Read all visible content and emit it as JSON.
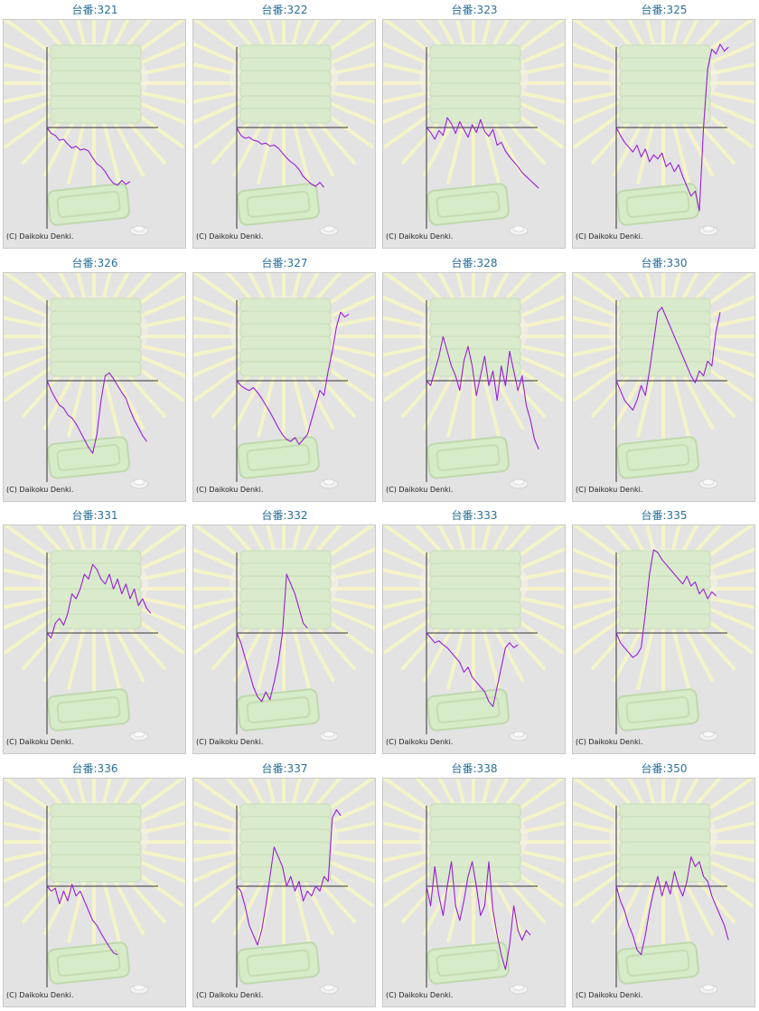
{
  "page": {
    "copyright": "(C) Daikoku Denki.",
    "line_color": "#9a1ed6",
    "label_color": "#2a6f9a"
  },
  "chart_data": [
    {
      "type": "line",
      "title": "台番:321",
      "y": [
        0,
        -6,
        -8,
        -13,
        -12,
        -17,
        -21,
        -19,
        -23,
        -22,
        -24,
        -31,
        -37,
        -40,
        -45,
        -52,
        -57,
        -59,
        -54,
        -58,
        -55
      ]
    },
    {
      "type": "line",
      "title": "台番:322",
      "y": [
        0,
        -8,
        -11,
        -10,
        -13,
        -14,
        -17,
        -16,
        -19,
        -18,
        -21,
        -26,
        -31,
        -35,
        -38,
        -43,
        -50,
        -54,
        -58,
        -60,
        -56,
        -61
      ]
    },
    {
      "type": "line",
      "title": "台番:323",
      "y": [
        0,
        -5,
        -12,
        -3,
        -8,
        10,
        4,
        -6,
        6,
        -2,
        -10,
        3,
        -5,
        8,
        -4,
        -9,
        -2,
        -18,
        -15,
        -24,
        -30,
        -35,
        -40,
        -46,
        -50,
        -54,
        -58,
        -62
      ]
    },
    {
      "type": "line",
      "title": "台番:325",
      "y": [
        0,
        -8,
        -15,
        -20,
        -25,
        -18,
        -30,
        -22,
        -35,
        -28,
        -32,
        -26,
        -40,
        -36,
        -45,
        -38,
        -50,
        -60,
        -70,
        -65,
        -85,
        0,
        60,
        80,
        75,
        85,
        78,
        82
      ]
    },
    {
      "type": "line",
      "title": "台番:326",
      "y": [
        0,
        -10,
        -18,
        -25,
        -28,
        -35,
        -38,
        -44,
        -52,
        -60,
        -68,
        -74,
        -55,
        -20,
        5,
        8,
        2,
        -5,
        -12,
        -18,
        -30,
        -40,
        -48,
        -56,
        -62
      ]
    },
    {
      "type": "line",
      "title": "台番:327",
      "y": [
        0,
        -5,
        -8,
        -10,
        -7,
        -12,
        -18,
        -25,
        -32,
        -40,
        -48,
        -55,
        -60,
        -62,
        -58,
        -65,
        -60,
        -55,
        -40,
        -25,
        -10,
        -15,
        10,
        30,
        55,
        70,
        65,
        68
      ]
    },
    {
      "type": "line",
      "title": "台番:328",
      "y": [
        0,
        -5,
        10,
        25,
        45,
        30,
        15,
        5,
        -10,
        20,
        35,
        15,
        -15,
        5,
        25,
        -5,
        10,
        -20,
        15,
        -5,
        30,
        10,
        -10,
        5,
        -25,
        -40,
        -60,
        -70
      ]
    },
    {
      "type": "line",
      "title": "台番:330",
      "y": [
        0,
        -10,
        -20,
        -25,
        -30,
        -20,
        -5,
        -15,
        10,
        40,
        70,
        75,
        65,
        55,
        45,
        35,
        25,
        15,
        5,
        -2,
        10,
        5,
        20,
        15,
        50,
        70
      ]
    },
    {
      "type": "line",
      "title": "台番:331",
      "y": [
        0,
        -5,
        10,
        15,
        8,
        20,
        40,
        35,
        45,
        60,
        55,
        70,
        65,
        55,
        50,
        60,
        45,
        55,
        40,
        50,
        35,
        45,
        28,
        35,
        25,
        20
      ]
    },
    {
      "type": "line",
      "title": "台番:332",
      "y": [
        0,
        -10,
        -25,
        -40,
        -55,
        -65,
        -70,
        -60,
        -68,
        -50,
        -30,
        0,
        60,
        50,
        40,
        25,
        10,
        5
      ]
    },
    {
      "type": "line",
      "title": "台番:333",
      "y": [
        0,
        -5,
        -10,
        -8,
        -12,
        -15,
        -20,
        -25,
        -30,
        -40,
        -35,
        -45,
        -50,
        -55,
        -60,
        -70,
        -75,
        -55,
        -35,
        -15,
        -10,
        -15,
        -12
      ]
    },
    {
      "type": "line",
      "title": "台番:335",
      "y": [
        0,
        -10,
        -15,
        -20,
        -25,
        -22,
        -15,
        20,
        60,
        85,
        82,
        75,
        70,
        65,
        60,
        55,
        50,
        58,
        48,
        52,
        40,
        45,
        35,
        42,
        38
      ]
    },
    {
      "type": "line",
      "title": "台番:336",
      "y": [
        0,
        -5,
        -2,
        -18,
        -5,
        -15,
        2,
        -10,
        -5,
        -15,
        -25,
        -35,
        -40,
        -48,
        -55,
        -62,
        -68,
        -70
      ]
    },
    {
      "type": "line",
      "title": "台番:337",
      "y": [
        0,
        -5,
        -20,
        -40,
        -50,
        -60,
        -45,
        -20,
        10,
        40,
        30,
        20,
        0,
        10,
        -5,
        5,
        -15,
        -5,
        -10,
        0,
        -5,
        10,
        5,
        70,
        78,
        72
      ]
    },
    {
      "type": "line",
      "title": "台番:338",
      "y": [
        0,
        -20,
        20,
        -10,
        -30,
        0,
        25,
        -20,
        -35,
        -15,
        10,
        25,
        0,
        -30,
        -20,
        25,
        -25,
        -50,
        -70,
        -85,
        -60,
        -20,
        -45,
        -55,
        -45,
        -50
      ]
    },
    {
      "type": "line",
      "title": "台番:350",
      "y": [
        0,
        -15,
        -25,
        -40,
        -50,
        -65,
        -70,
        -50,
        -25,
        -5,
        10,
        -10,
        5,
        -8,
        15,
        0,
        -10,
        5,
        30,
        20,
        25,
        10,
        5,
        -10,
        -20,
        -30,
        -40,
        -55
      ]
    }
  ]
}
